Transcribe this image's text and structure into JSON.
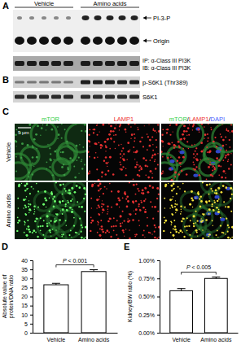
{
  "panels": {
    "A": {
      "label": "A",
      "groups": [
        "Vehicle",
        "Amino acids"
      ],
      "tlc_labels": [
        "PI-3-P",
        "Origin"
      ],
      "blot_labels": [
        "IP: α-Class III PI3K",
        "IB: α-Class III PI3K"
      ]
    },
    "B": {
      "label": "B",
      "blot_labels": [
        "p-S6K1 (Thr389)",
        "S6K1"
      ]
    },
    "C": {
      "label": "C",
      "columns": [
        "mTOR",
        "LAMP1",
        "mTOR/LAMP1/DAPI"
      ],
      "rows": [
        "Vehicle",
        "Amino acids"
      ],
      "scale_bar": "5 µm"
    }
  },
  "chart_data": [
    {
      "type": "bar",
      "title": "D",
      "y_label": "Absolute value of protein/DNA ratio",
      "categories": [
        "Vehicle",
        "Amino acids"
      ],
      "values": [
        26.5,
        33.8
      ],
      "errors": [
        0.8,
        1.0
      ],
      "color": "#ffffff",
      "ylim": [
        0,
        40
      ],
      "yticks": [
        0,
        5,
        10,
        15,
        20,
        25,
        30,
        35,
        40
      ],
      "annotations": [
        {
          "text": "P < 0.001"
        }
      ]
    },
    {
      "type": "bar",
      "title": "E",
      "y_label": "Kidney/BW ratio (%)",
      "categories": [
        "Vehicle",
        "Amino acids"
      ],
      "values": [
        0.58,
        0.75
      ],
      "errors": [
        0.03,
        0.02
      ],
      "color": "#ffffff",
      "ylim": [
        0,
        1
      ],
      "yticks": [
        {
          "value": 0,
          "label": "0.00%"
        },
        {
          "value": 0.25,
          "label": "0.25%"
        },
        {
          "value": 0.5,
          "label": "0.50%"
        },
        {
          "value": 0.75,
          "label": "0.75%"
        },
        {
          "value": 1,
          "label": "1.00%"
        }
      ],
      "annotations": [
        {
          "text": "P < 0.005"
        }
      ]
    }
  ]
}
